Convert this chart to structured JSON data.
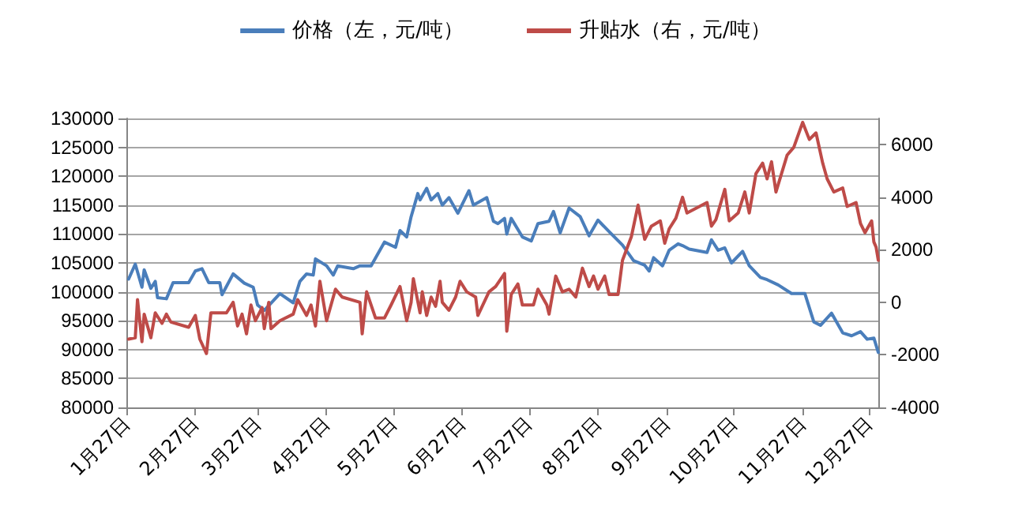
{
  "chart_data": {
    "type": "line",
    "legend": "top",
    "grid": "y",
    "marker": "none",
    "line_style": "solid",
    "xlim": [
      "--01-27",
      "--12-31"
    ],
    "xticks": [
      {
        "value": "--01-27",
        "label": "1月27日"
      },
      {
        "value": "--02-27",
        "label": "2月27日"
      },
      {
        "value": "--03-27",
        "label": "3月27日"
      },
      {
        "value": "--04-27",
        "label": "4月27日"
      },
      {
        "value": "--05-27",
        "label": "5月27日"
      },
      {
        "value": "--06-27",
        "label": "6月27日"
      },
      {
        "value": "--07-27",
        "label": "7月27日"
      },
      {
        "value": "--08-27",
        "label": "8月27日"
      },
      {
        "value": "--09-27",
        "label": "9月27日"
      },
      {
        "value": "--10-27",
        "label": "10月27日"
      },
      {
        "value": "--11-27",
        "label": "11月27日"
      },
      {
        "value": "--12-27",
        "label": "12月27日"
      }
    ],
    "ylim": [
      80000,
      130000
    ],
    "yticks": [
      80000,
      85000,
      90000,
      95000,
      100000,
      105000,
      110000,
      115000,
      120000,
      125000,
      130000
    ],
    "y2lim": [
      -4000,
      7000
    ],
    "y2ticks": [
      -4000,
      -2000,
      0,
      2000,
      4000,
      6000
    ],
    "series": [
      {
        "name": "价格（左，元/吨）",
        "color": "#4a7ebb",
        "x": [
          "--01-28",
          "--01-31",
          "--02-03",
          "--02-04",
          "--02-07",
          "--02-09",
          "--02-10",
          "--02-14",
          "--02-17",
          "--02-24",
          "--02-27",
          "--03-02",
          "--03-05",
          "--03-10",
          "--03-11",
          "--03-16",
          "--03-21",
          "--03-25",
          "--03-27",
          "--03-30",
          "--04-06",
          "--04-12",
          "--04-15",
          "--04-18",
          "--04-21",
          "--04-22",
          "--04-27",
          "--04-30",
          "--05-02",
          "--05-09",
          "--05-12",
          "--05-17",
          "--05-23",
          "--05-28",
          "--05-30",
          "--06-02",
          "--06-04",
          "--06-07",
          "--06-08",
          "--06-11",
          "--06-13",
          "--06-16",
          "--06-18",
          "--06-21",
          "--06-25",
          "--06-30",
          "--07-02",
          "--07-08",
          "--07-11",
          "--07-13",
          "--07-16",
          "--07-17",
          "--07-19",
          "--07-24",
          "--07-28",
          "--07-31",
          "--08-05",
          "--08-07",
          "--08-10",
          "--08-14",
          "--08-19",
          "--08-23",
          "--08-27",
          "--09-01",
          "--09-07",
          "--09-12",
          "--09-17",
          "--09-19",
          "--09-21",
          "--09-25",
          "--09-28",
          "--10-02",
          "--10-04",
          "--10-07",
          "--10-15",
          "--10-17",
          "--10-20",
          "--10-23",
          "--10-26",
          "--10-31",
          "--11-03",
          "--11-08",
          "--11-11",
          "--11-16",
          "--11-22",
          "--11-28",
          "--12-02",
          "--12-05",
          "--12-10",
          "--12-15",
          "--12-19",
          "--12-23",
          "--12-26",
          "--12-29",
          "--12-31"
        ],
        "values": [
          102200,
          104800,
          100800,
          103800,
          100600,
          101800,
          99000,
          98800,
          101600,
          101600,
          103600,
          104000,
          101600,
          101600,
          99500,
          103100,
          101500,
          100800,
          97700,
          96800,
          99700,
          98100,
          101800,
          103100,
          102900,
          105700,
          104500,
          102900,
          104500,
          104000,
          104500,
          104500,
          108600,
          107700,
          110600,
          109500,
          113000,
          117000,
          115900,
          117900,
          115900,
          117000,
          115000,
          116300,
          113600,
          117500,
          115000,
          116300,
          112200,
          111800,
          112700,
          110000,
          112700,
          109500,
          108800,
          111800,
          112200,
          113900,
          110200,
          114500,
          113000,
          109700,
          112400,
          110400,
          108100,
          105400,
          104600,
          103600,
          105900,
          104500,
          107200,
          108300,
          108000,
          107400,
          106800,
          109000,
          107200,
          107600,
          105000,
          107000,
          104500,
          102500,
          102100,
          101200,
          99700,
          99700,
          94800,
          94200,
          96300,
          92900,
          92400,
          93100,
          91800,
          92000,
          89500
        ]
      },
      {
        "name": "升贴水（右，元/吨）",
        "color": "#be4b48",
        "axis": "y2",
        "x": [
          "--01-28",
          "--01-31",
          "--02-01",
          "--02-03",
          "--02-04",
          "--02-07",
          "--02-09",
          "--02-12",
          "--02-14",
          "--02-16",
          "--02-24",
          "--02-27",
          "--03-01",
          "--03-04",
          "--03-06",
          "--03-13",
          "--03-16",
          "--03-18",
          "--03-20",
          "--03-22",
          "--03-24",
          "--03-26",
          "--03-29",
          "--03-30",
          "--04-01",
          "--04-02",
          "--04-06",
          "--04-12",
          "--04-14",
          "--04-18",
          "--04-20",
          "--04-22",
          "--04-24",
          "--04-27",
          "--05-01",
          "--05-04",
          "--05-12",
          "--05-13",
          "--05-15",
          "--05-19",
          "--05-23",
          "--05-26",
          "--05-30",
          "--06-02",
          "--06-04",
          "--06-05",
          "--06-08",
          "--06-09",
          "--06-11",
          "--06-13",
          "--06-15",
          "--06-17",
          "--06-18",
          "--06-21",
          "--06-24",
          "--06-26",
          "--06-29",
          "--07-03",
          "--07-04",
          "--07-09",
          "--07-12",
          "--07-16",
          "--07-17",
          "--07-19",
          "--07-22",
          "--07-24",
          "--07-29",
          "--07-31",
          "--08-04",
          "--08-05",
          "--08-08",
          "--08-11",
          "--08-14",
          "--08-17",
          "--08-20",
          "--08-23",
          "--08-25",
          "--08-27",
          "--08-30",
          "--09-01",
          "--09-05",
          "--09-07",
          "--09-11",
          "--09-14",
          "--09-17",
          "--09-20",
          "--09-24",
          "--09-26",
          "--09-28",
          "--10-01",
          "--10-04",
          "--10-06",
          "--10-15",
          "--10-17",
          "--10-19",
          "--10-23",
          "--10-25",
          "--10-29",
          "--11-01",
          "--11-03",
          "--11-06",
          "--11-09",
          "--11-11",
          "--11-13",
          "--11-15",
          "--11-20",
          "--11-23",
          "--11-27",
          "--11-30",
          "--12-03",
          "--12-06",
          "--12-08",
          "--12-11",
          "--12-15",
          "--12-17",
          "--12-21",
          "--12-23",
          "--12-25",
          "--12-28",
          "--12-29",
          "--12-30",
          "--12-31"
        ],
        "values": [
          -1400,
          -1350,
          100,
          -1500,
          -450,
          -1350,
          -400,
          -800,
          -450,
          -750,
          -950,
          -500,
          -1400,
          -1950,
          -400,
          -400,
          0,
          -900,
          -450,
          -1200,
          -100,
          -700,
          -200,
          -1000,
          0,
          -1000,
          -700,
          -450,
          100,
          -500,
          -100,
          -900,
          800,
          -700,
          500,
          200,
          0,
          -1200,
          400,
          -600,
          -600,
          -100,
          600,
          -700,
          0,
          900,
          -400,
          400,
          -500,
          200,
          -150,
          800,
          0,
          -300,
          200,
          800,
          400,
          200,
          -500,
          400,
          600,
          1100,
          -1100,
          300,
          700,
          -100,
          -100,
          500,
          -100,
          -450,
          1000,
          400,
          500,
          200,
          1300,
          600,
          1000,
          500,
          1000,
          300,
          300,
          1600,
          2500,
          3700,
          2400,
          2900,
          3100,
          2250,
          2800,
          3200,
          4000,
          3400,
          3800,
          2900,
          3150,
          4300,
          3100,
          3400,
          4200,
          3400,
          4900,
          5300,
          4700,
          5350,
          4200,
          5600,
          5900,
          6850,
          6200,
          6450,
          5300,
          4700,
          4200,
          4350,
          3650,
          3800,
          3000,
          2650,
          3100,
          2300,
          2100,
          1600
        ]
      }
    ]
  }
}
